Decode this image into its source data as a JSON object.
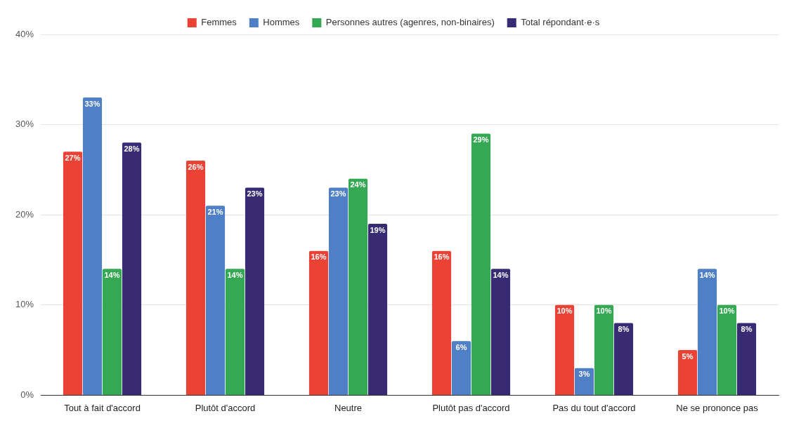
{
  "chart_data": {
    "type": "bar",
    "categories": [
      "Tout à fait d'accord",
      "Plutôt d'accord",
      "Neutre",
      "Plutôt pas d'accord",
      "Pas du tout d'accord",
      "Ne se prononce pas"
    ],
    "series": [
      {
        "name": "Femmes",
        "color": "#ea4335",
        "values": [
          27,
          26,
          16,
          16,
          10,
          5
        ],
        "value_labels": [
          "27%",
          "26%",
          "16%",
          "16%",
          "10%",
          "5%"
        ]
      },
      {
        "name": "Hommes",
        "color": "#4f7fc4",
        "values": [
          33,
          21,
          23,
          6,
          3,
          14
        ],
        "value_labels": [
          "33%",
          "21%",
          "23%",
          "6%",
          "3%",
          "14%"
        ]
      },
      {
        "name": "Personnes autres (agenres, non-binaires)",
        "color": "#34a853",
        "values": [
          14,
          14,
          24,
          29,
          10,
          10
        ],
        "value_labels": [
          "14%",
          "14%",
          "24%",
          "29%",
          "10%",
          "10%"
        ]
      },
      {
        "name": "Total répondant·e·s",
        "color": "#382a73",
        "values": [
          28,
          23,
          19,
          14,
          8,
          8
        ],
        "value_labels": [
          "28%",
          "23%",
          "19%",
          "14%",
          "8%",
          "8%"
        ]
      }
    ],
    "ylim": [
      0,
      40
    ],
    "yticks": [
      {
        "value": 0,
        "label": "0%"
      },
      {
        "value": 10,
        "label": "10%"
      },
      {
        "value": 20,
        "label": "20%"
      },
      {
        "value": 30,
        "label": "30%"
      },
      {
        "value": 40,
        "label": "40%"
      }
    ],
    "grid": "y",
    "legend": "top"
  }
}
